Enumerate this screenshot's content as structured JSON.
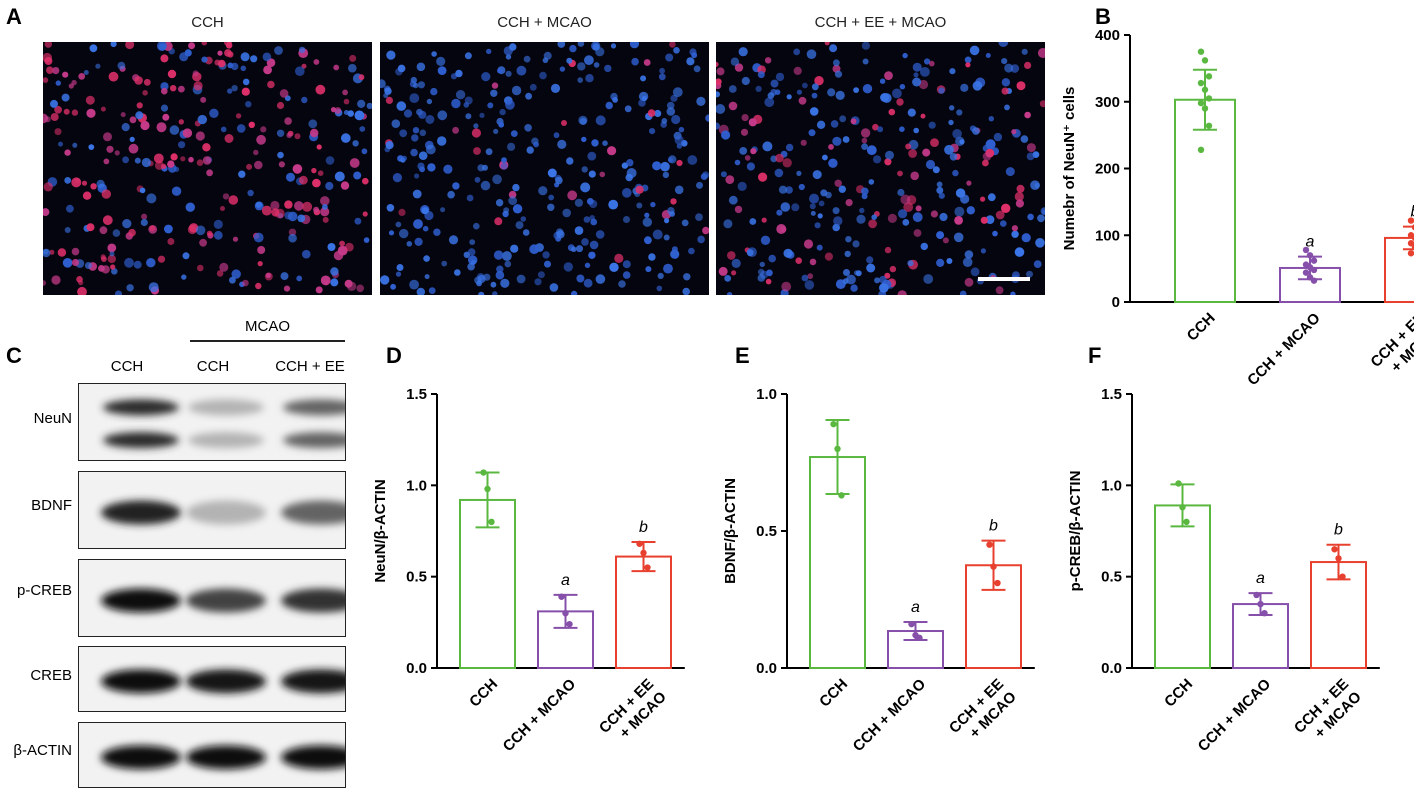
{
  "panel_letters": [
    "A",
    "B",
    "C",
    "D",
    "E",
    "F"
  ],
  "panel_a": {
    "images": [
      {
        "title": "CCH",
        "red_ratio": 0.6
      },
      {
        "title": "CCH + MCAO",
        "red_ratio": 0.06
      },
      {
        "title": "CCH + EE + MCAO",
        "red_ratio": 0.32
      }
    ]
  },
  "panel_c": {
    "group_label": "MCAO",
    "lanes": [
      "CCH",
      "CCH",
      "CCH + EE"
    ],
    "rows": [
      {
        "label": "NeuN",
        "double_band": true,
        "intensity": [
          0.85,
          0.25,
          0.6
        ]
      },
      {
        "label": "BDNF",
        "double_band": false,
        "intensity": [
          0.9,
          0.25,
          0.6
        ]
      },
      {
        "label": "p-CREB",
        "double_band": false,
        "intensity": [
          1.0,
          0.75,
          0.82
        ]
      },
      {
        "label": "CREB",
        "double_band": false,
        "intensity": [
          1.0,
          0.95,
          0.95
        ]
      },
      {
        "label": "β-ACTIN",
        "double_band": false,
        "intensity": [
          1.0,
          0.97,
          0.97
        ]
      }
    ]
  },
  "colors": {
    "CCH": "#5ab841",
    "CCH + MCAO": "#8650aa",
    "CCH + EE + MCAO": "#e8402e"
  },
  "chart_data": [
    {
      "panel": "B",
      "type": "bar",
      "categories": [
        "CCH",
        "CCH + MCAO",
        "CCH + EE\n+ MCAO"
      ],
      "values": [
        303,
        51,
        96
      ],
      "errors": [
        45,
        17,
        17
      ],
      "points": [
        [
          375,
          362,
          338,
          328,
          318,
          305,
          298,
          290,
          264,
          228
        ],
        [
          78,
          70,
          62,
          56,
          52,
          48,
          44,
          37,
          32
        ],
        [
          122,
          112,
          106,
          100,
          96,
          92,
          88,
          82,
          78,
          73
        ]
      ],
      "annotations": [
        "",
        "a",
        "b"
      ],
      "ylabel": "Numebr of NeuN⁺ cells",
      "ylim": [
        0,
        400
      ],
      "yticks": [
        0,
        100,
        200,
        300,
        400
      ]
    },
    {
      "panel": "D",
      "type": "bar",
      "categories": [
        "CCH",
        "CCH + MCAO",
        "CCH + EE\n+ MCAO"
      ],
      "values": [
        0.92,
        0.31,
        0.61
      ],
      "errors": [
        0.15,
        0.09,
        0.08
      ],
      "points": [
        [
          1.07,
          0.98,
          0.8
        ],
        [
          0.39,
          0.3,
          0.24
        ],
        [
          0.68,
          0.63,
          0.55
        ]
      ],
      "annotations": [
        "",
        "a",
        "b"
      ],
      "ylabel": "NeuN/β-ACTIN",
      "ylim": [
        0,
        1.5
      ],
      "yticks": [
        0.0,
        0.5,
        1.0,
        1.5
      ]
    },
    {
      "panel": "E",
      "type": "bar",
      "categories": [
        "CCH",
        "CCH + MCAO",
        "CCH + EE\n+ MCAO"
      ],
      "values": [
        0.77,
        0.135,
        0.375
      ],
      "errors": [
        0.135,
        0.033,
        0.09
      ],
      "points": [
        [
          0.89,
          0.8,
          0.63
        ],
        [
          0.16,
          0.12,
          0.11
        ],
        [
          0.45,
          0.37,
          0.31
        ]
      ],
      "annotations": [
        "",
        "a",
        "b"
      ],
      "ylabel": "BDNF/β-ACTIN",
      "ylim": [
        0,
        1.0
      ],
      "yticks": [
        0.0,
        0.5,
        1.0
      ]
    },
    {
      "panel": "F",
      "type": "bar",
      "categories": [
        "CCH",
        "CCH + MCAO",
        "CCH + EE\n+ MCAO"
      ],
      "values": [
        0.89,
        0.35,
        0.58
      ],
      "errors": [
        0.115,
        0.06,
        0.095
      ],
      "points": [
        [
          1.01,
          0.88,
          0.8
        ],
        [
          0.4,
          0.35,
          0.3
        ],
        [
          0.65,
          0.6,
          0.5
        ]
      ],
      "annotations": [
        "",
        "a",
        "b"
      ],
      "ylabel": "p-CREB/β-ACTIN",
      "ylim": [
        0,
        1.5
      ],
      "yticks": [
        0.0,
        0.5,
        1.0,
        1.5
      ]
    }
  ]
}
